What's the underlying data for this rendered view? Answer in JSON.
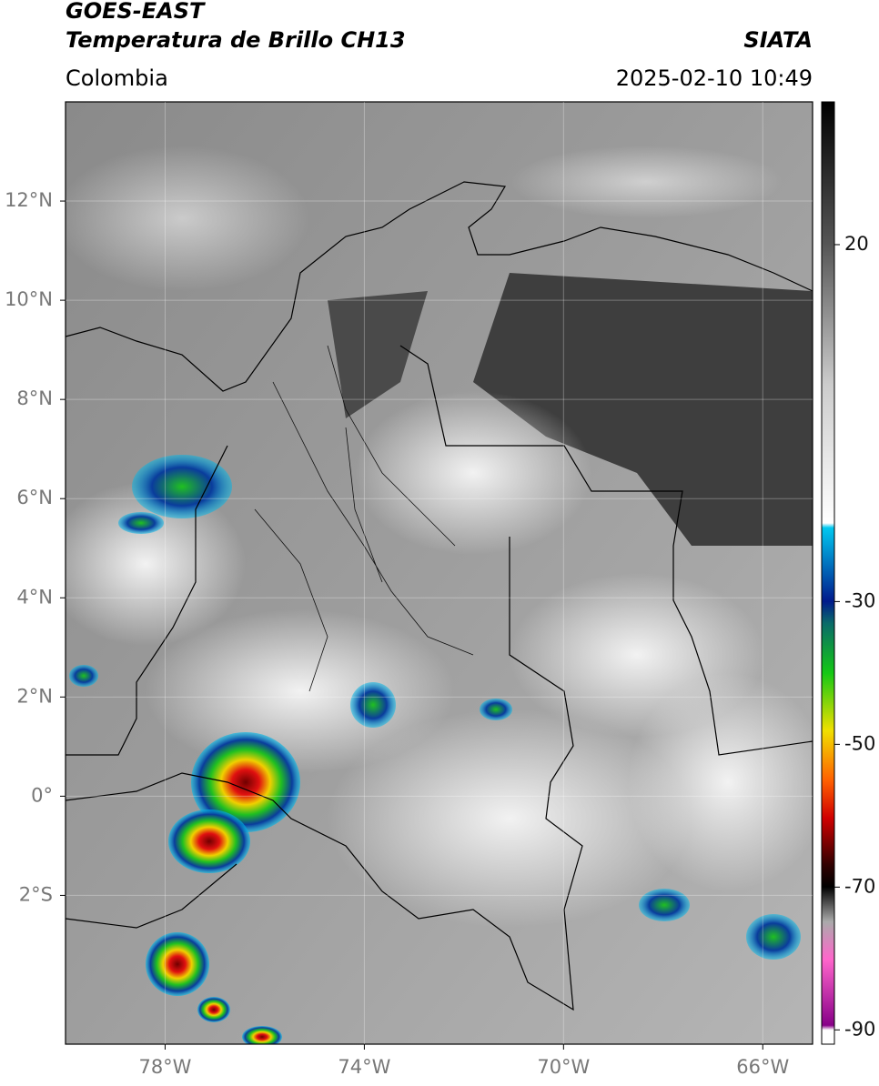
{
  "header": {
    "title": "GOES-EAST",
    "subtitle": "Temperatura de Brillo CH13",
    "source": "SIATA",
    "region": "Colombia",
    "timestamp": "2025-02-10 10:49"
  },
  "map": {
    "lonlim": [
      -80,
      -65
    ],
    "latlim": [
      -5,
      14
    ],
    "grid": true,
    "xticks": [
      {
        "value": -78,
        "label": "78°W"
      },
      {
        "value": -74,
        "label": "74°W"
      },
      {
        "value": -70,
        "label": "70°W"
      },
      {
        "value": -66,
        "label": "66°W"
      }
    ],
    "yticks": [
      {
        "value": 12,
        "label": "12°N"
      },
      {
        "value": 10,
        "label": "10°N"
      },
      {
        "value": 8,
        "label": "8°N"
      },
      {
        "value": 6,
        "label": "6°N"
      },
      {
        "value": 4,
        "label": "4°N"
      },
      {
        "value": 2,
        "label": "2°N"
      },
      {
        "value": 0,
        "label": "0°"
      },
      {
        "value": -2,
        "label": "2°S"
      }
    ]
  },
  "colorbar": {
    "lim": [
      -92,
      40
    ],
    "ticks": [
      20,
      -30,
      -50,
      -70,
      -90
    ]
  }
}
